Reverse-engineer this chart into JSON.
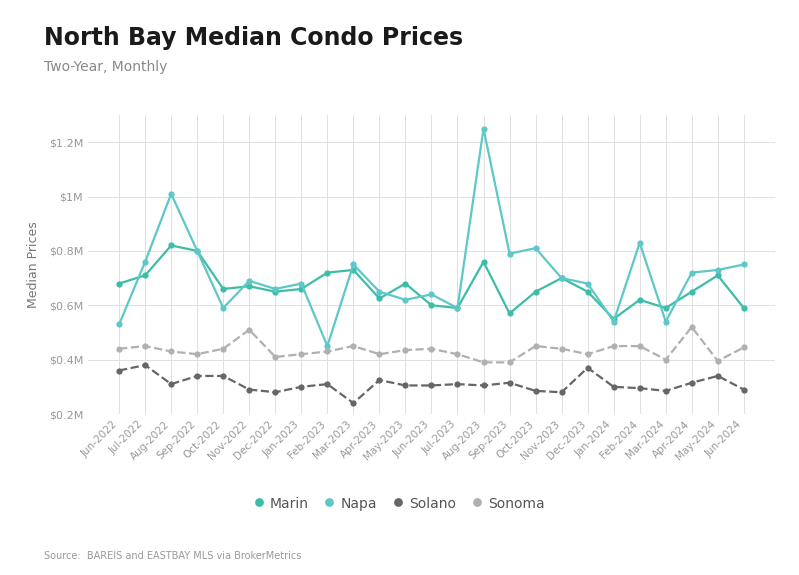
{
  "title": "North Bay Median Condo Prices",
  "subtitle": "Two-Year, Monthly",
  "ylabel": "Median Prices",
  "source": "Source:  BAREIS and EASTBAY MLS via BrokerMetrics",
  "ylim": [
    200000,
    1300000
  ],
  "yticks": [
    200000,
    400000,
    600000,
    800000,
    1000000,
    1200000
  ],
  "ytick_labels": [
    "$0.2M",
    "$0.4M",
    "$0.6M",
    "$0.8M",
    "$1M",
    "$1.2M"
  ],
  "months": [
    "Jun-2022",
    "Jul-2022",
    "Aug-2022",
    "Sep-2022",
    "Oct-2022",
    "Nov-2022",
    "Dec-2022",
    "Jan-2023",
    "Feb-2023",
    "Mar-2023",
    "Apr-2023",
    "May-2023",
    "Jun-2023",
    "Jul-2023",
    "Aug-2023",
    "Sep-2023",
    "Oct-2023",
    "Nov-2023",
    "Dec-2023",
    "Jan-2024",
    "Feb-2024",
    "Mar-2024",
    "Apr-2024",
    "May-2024",
    "Jun-2024"
  ],
  "series": {
    "Marin": {
      "color": "#3dbda7",
      "style": "solid",
      "values": [
        680000,
        710000,
        820000,
        800000,
        660000,
        670000,
        650000,
        660000,
        720000,
        730000,
        625000,
        680000,
        600000,
        590000,
        760000,
        570000,
        650000,
        700000,
        650000,
        550000,
        620000,
        590000,
        650000,
        710000,
        590000
      ]
    },
    "Napa": {
      "color": "#5ec8c8",
      "style": "solid",
      "values": [
        530000,
        760000,
        1010000,
        800000,
        590000,
        690000,
        660000,
        680000,
        450000,
        750000,
        650000,
        620000,
        640000,
        590000,
        1250000,
        790000,
        810000,
        700000,
        680000,
        540000,
        830000,
        540000,
        720000,
        730000,
        750000
      ]
    },
    "Solano": {
      "color": "#666666",
      "style": "dashed",
      "values": [
        360000,
        380000,
        310000,
        340000,
        340000,
        290000,
        280000,
        300000,
        310000,
        240000,
        325000,
        305000,
        305000,
        310000,
        305000,
        315000,
        285000,
        280000,
        370000,
        300000,
        295000,
        285000,
        315000,
        340000,
        290000
      ]
    },
    "Sonoma": {
      "color": "#b0b0b0",
      "style": "dashed",
      "values": [
        440000,
        450000,
        430000,
        420000,
        440000,
        510000,
        410000,
        420000,
        430000,
        450000,
        420000,
        435000,
        440000,
        420000,
        390000,
        390000,
        450000,
        440000,
        420000,
        450000,
        450000,
        400000,
        520000,
        395000,
        445000
      ]
    }
  },
  "bg_color": "#ffffff",
  "plot_bg": "#ffffff",
  "grid_color": "#e0e0e0",
  "title_fontsize": 17,
  "subtitle_fontsize": 10,
  "tick_fontsize": 7.5,
  "ylabel_fontsize": 9
}
